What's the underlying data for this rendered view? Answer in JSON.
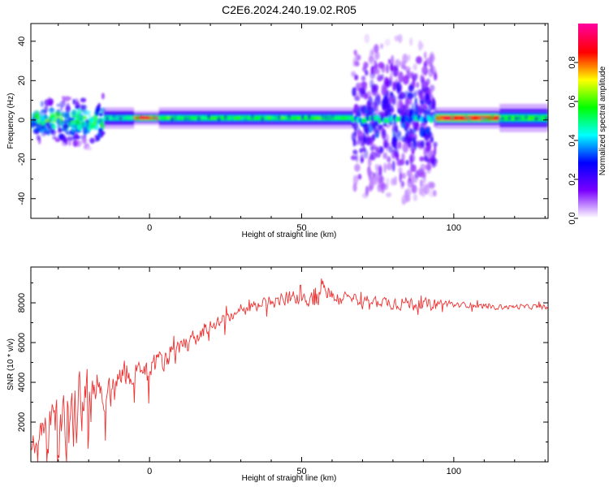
{
  "title": "C2E6.2024.240.19.02.R05",
  "chart_data": [
    {
      "type": "heatmap",
      "xlabel": "Height of straight line (km)",
      "ylabel": "Frequency (Hz)",
      "xlim": [
        -39,
        131
      ],
      "ylim": [
        -50,
        49
      ],
      "xticks": [
        0,
        50,
        100
      ],
      "yticks": [
        -40,
        -20,
        0,
        20,
        40
      ],
      "colorbar": {
        "label": "Normalized spectral amplitude",
        "range": [
          0,
          1
        ],
        "ticks": [
          "0.0",
          "0.2",
          "0.4",
          "0.6",
          "0.8"
        ],
        "ticks_values": [
          0,
          0.2,
          0.4,
          0.6,
          0.8
        ],
        "colormap": [
          "#ffffff",
          "#7a00ff",
          "#0000ff",
          "#00ffff",
          "#00ff00",
          "#ffff00",
          "#ff0000",
          "#ff0099"
        ]
      },
      "features": [
        {
          "x_range": [
            -39,
            -15
          ],
          "freq_spread": 14,
          "amplitude": 0.45
        },
        {
          "x_range": [
            -15,
            -5
          ],
          "freq_spread": 3,
          "amplitude": 0.5
        },
        {
          "x_range": [
            -5,
            3
          ],
          "freq_spread": 2,
          "amplitude": 0.9
        },
        {
          "x_range": [
            3,
            67
          ],
          "freq_spread": 3,
          "amplitude": 0.55
        },
        {
          "x_range": [
            67,
            94
          ],
          "freq_spread": 45,
          "amplitude": 0.25
        },
        {
          "x_range": [
            94,
            115
          ],
          "freq_spread": 3,
          "amplitude": 0.85
        },
        {
          "x_range": [
            115,
            131
          ],
          "freq_spread": 4,
          "amplitude": 0.55
        }
      ]
    },
    {
      "type": "line",
      "xlabel": "Height of straight line (km)",
      "ylabel": "SNR (10 * v/v)",
      "xlim": [
        -39,
        131
      ],
      "ylim": [
        0,
        9800
      ],
      "xticks": [
        0,
        50,
        100
      ],
      "yticks": [
        2000,
        4000,
        6000,
        8000
      ],
      "color": "#ee3333",
      "x": [
        -39,
        -35,
        -30,
        -25,
        -20,
        -15,
        -10,
        -5,
        0,
        5,
        10,
        15,
        20,
        25,
        30,
        35,
        40,
        45,
        50,
        55,
        57,
        60,
        65,
        70,
        75,
        80,
        85,
        90,
        95,
        100,
        105,
        110,
        115,
        120,
        125,
        131
      ],
      "y": [
        900,
        1500,
        2000,
        2500,
        3000,
        3500,
        4200,
        4600,
        4800,
        5200,
        5600,
        6300,
        6800,
        7200,
        7500,
        7900,
        8000,
        8200,
        8300,
        8200,
        9000,
        8300,
        8200,
        8100,
        8100,
        8000,
        8000,
        7900,
        8000,
        7900,
        7900,
        7800,
        7800,
        7800,
        7800,
        7800
      ],
      "noise": [
        700,
        1500,
        2200,
        2600,
        2300,
        1500,
        1300,
        1000,
        900,
        900,
        800,
        600,
        500,
        450,
        400,
        400,
        450,
        500,
        700,
        900,
        1100,
        600,
        500,
        450,
        400,
        500,
        500,
        450,
        300,
        250,
        200,
        200,
        180,
        180,
        180,
        180
      ]
    }
  ]
}
